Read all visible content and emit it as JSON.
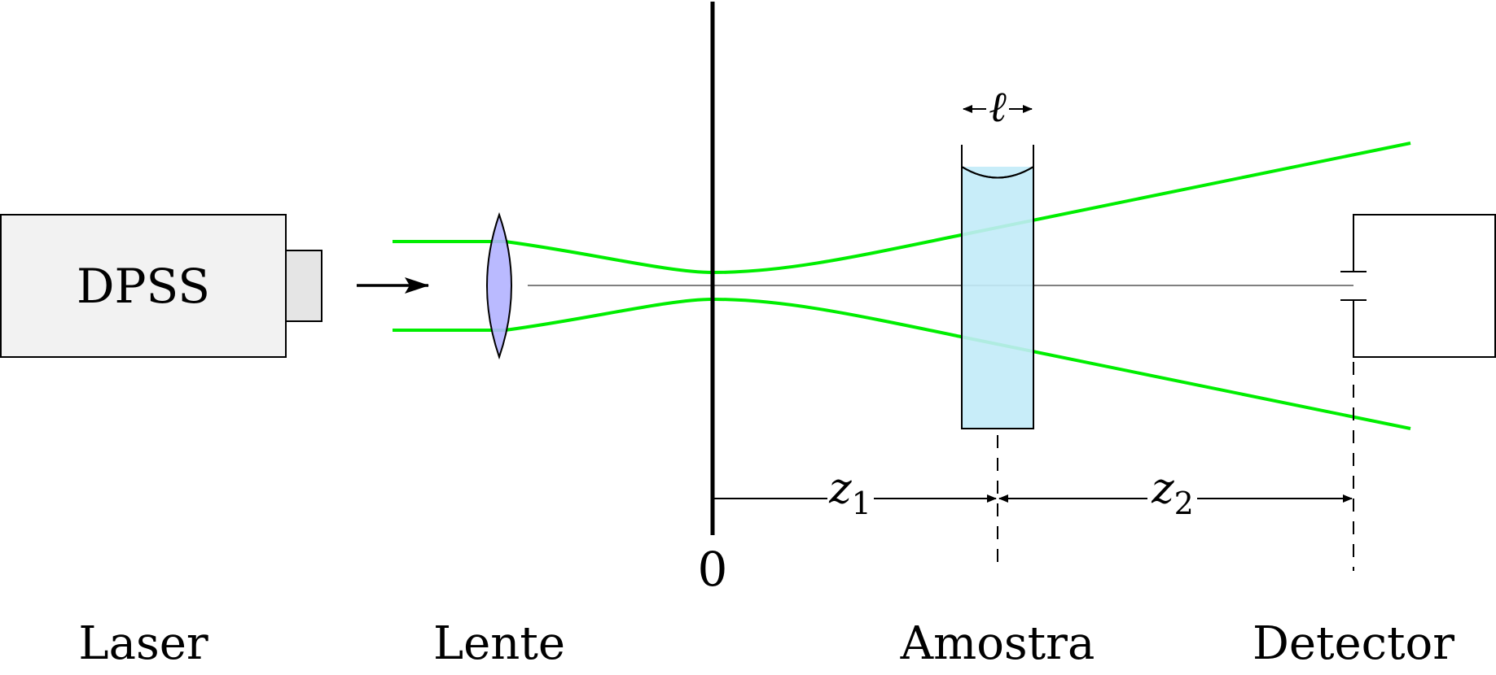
{
  "laser": {
    "box_label": "DPSS",
    "caption": "Laser"
  },
  "lens": {
    "caption": "Lente"
  },
  "sample": {
    "caption": "Amostra",
    "thickness_symbol": "ℓ"
  },
  "detector": {
    "caption": "Detector"
  },
  "axis": {
    "origin_label": "0"
  },
  "distances": [
    {
      "symbol": "z",
      "subscript": "1"
    },
    {
      "symbol": "z",
      "subscript": "2"
    }
  ],
  "colors": {
    "beam": "#00ee00",
    "lens_fill": "#b3b3ff",
    "sample_fill": "#c2ebf8",
    "laser_fill": "#f2f2f2",
    "laser_nozzle_fill": "#e5e5e5",
    "optical_axis": "#808080"
  }
}
